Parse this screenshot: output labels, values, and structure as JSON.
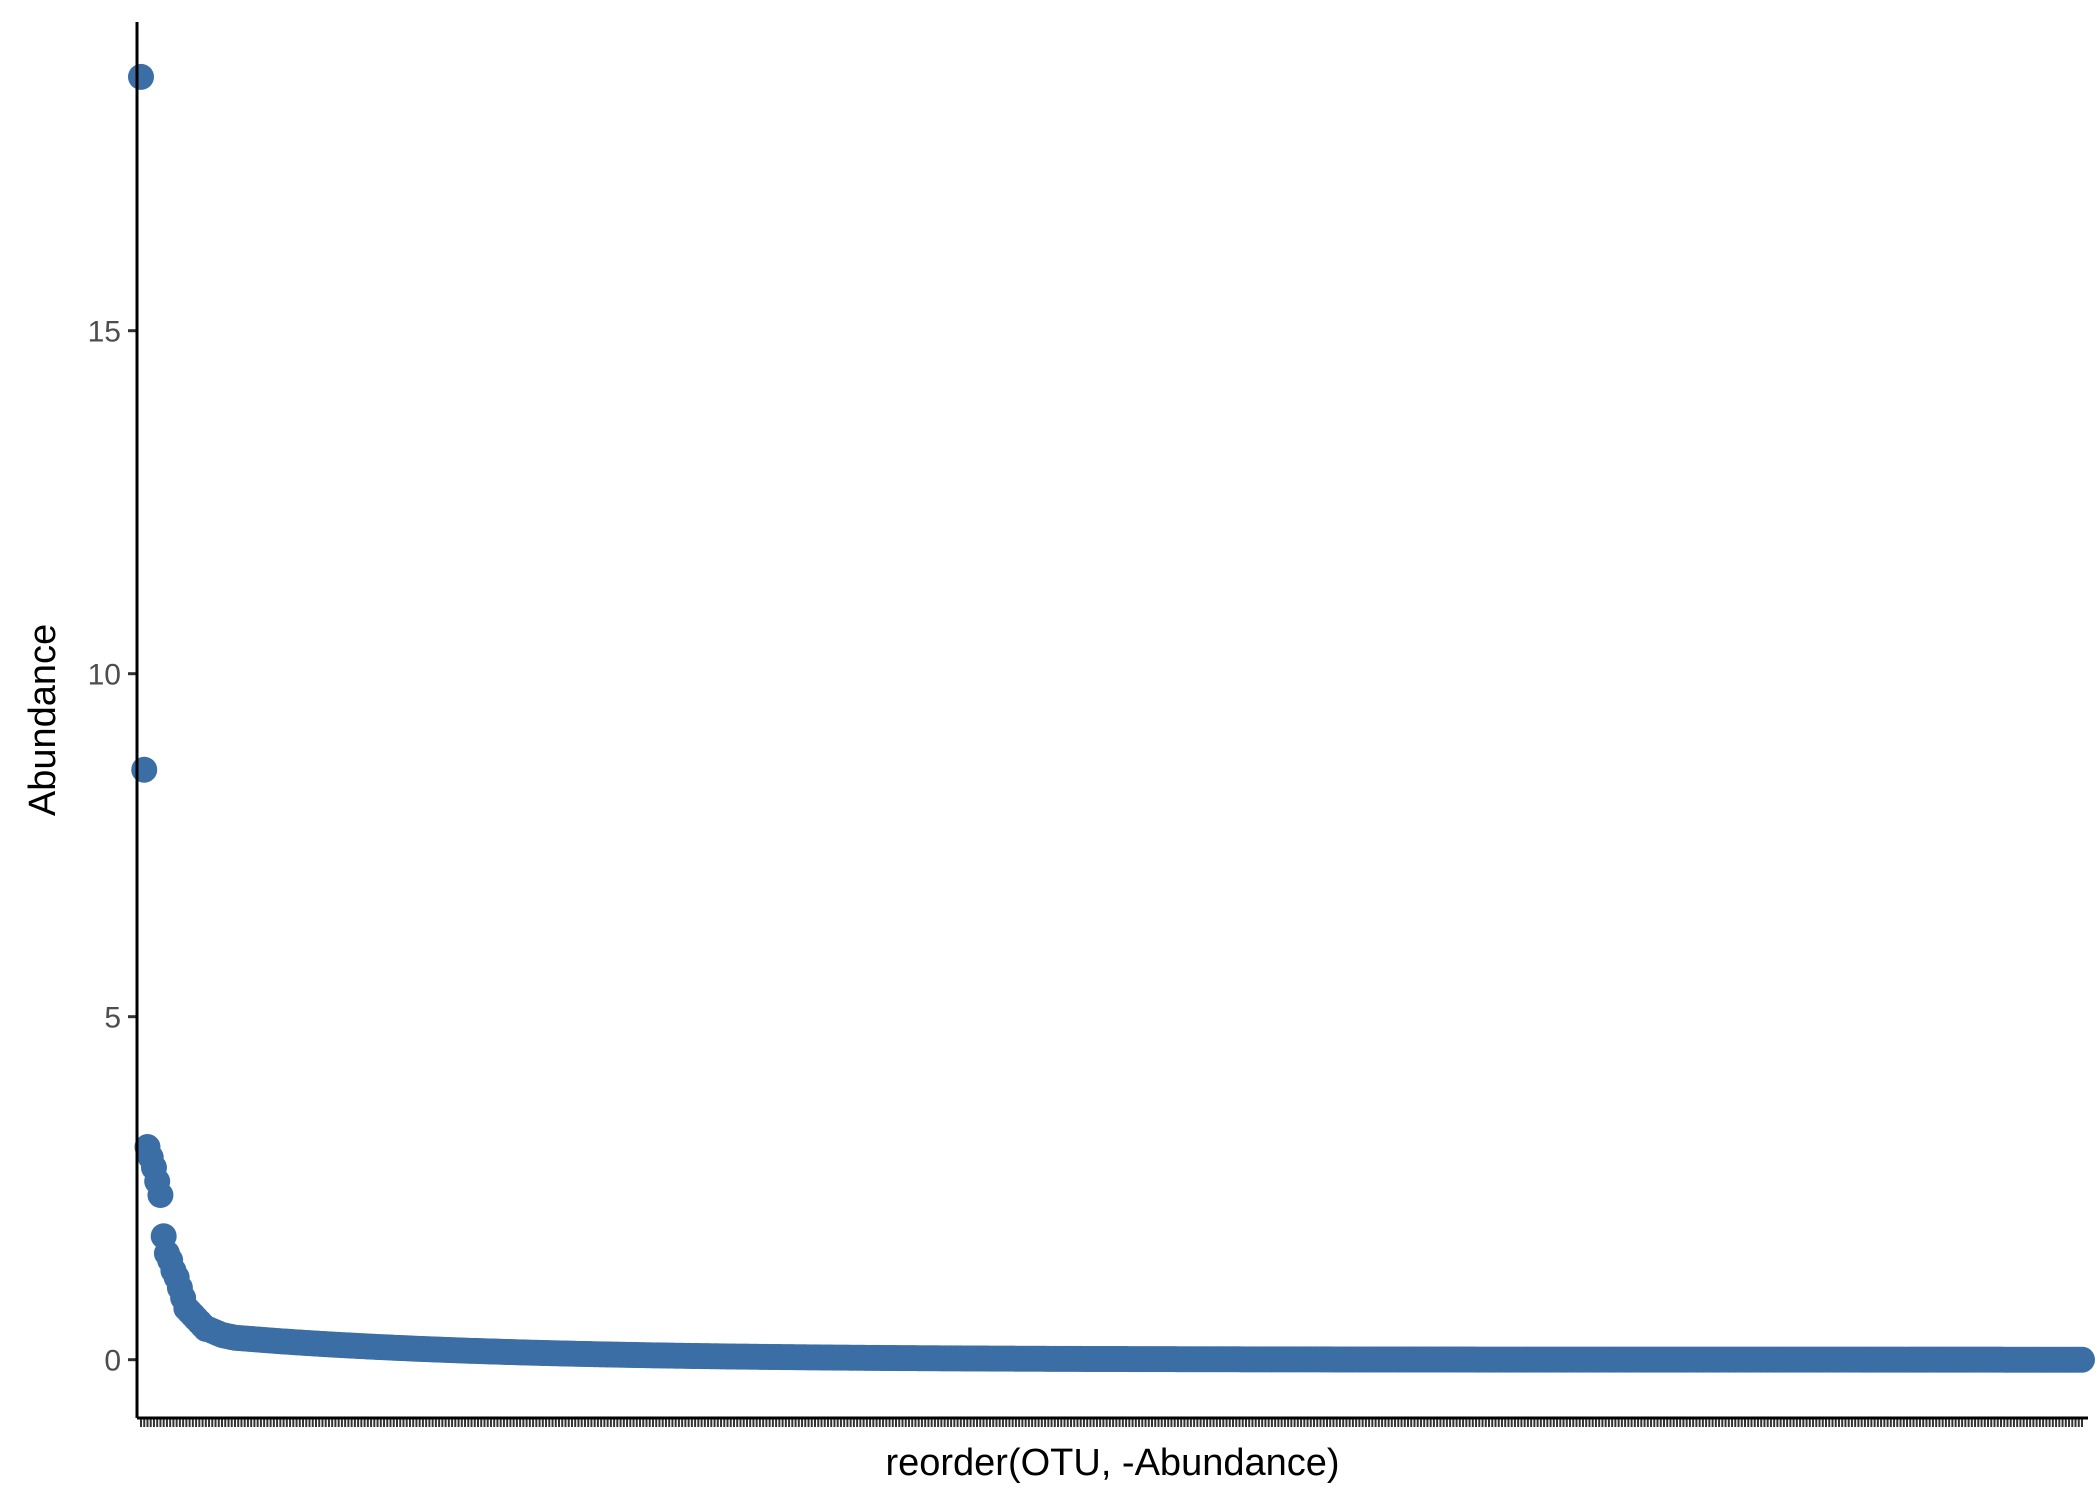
{
  "chart_data": {
    "type": "scatter",
    "title": "",
    "xlabel": "reorder(OTU, -Abundance)",
    "ylabel": "Abundance",
    "ylim": [
      -0.85,
      19.5
    ],
    "yticks": [
      0,
      5,
      10,
      15
    ],
    "ytick_labels": [
      "0",
      "5",
      "10",
      "15"
    ],
    "x_tick_labels_visible": false,
    "grid": false,
    "point_color": "#3A6EA5",
    "axis_color": "#000000",
    "n_points": 600,
    "top_values": [
      18.7,
      8.6,
      3.1,
      2.95,
      2.8,
      2.6,
      2.4,
      1.8,
      1.55,
      1.45,
      1.3,
      1.2,
      1.05,
      0.9,
      0.75,
      0.7,
      0.65,
      0.6,
      0.55,
      0.5,
      0.45,
      0.44,
      0.42,
      0.4,
      0.38,
      0.36,
      0.35,
      0.34,
      0.33,
      0.32
    ],
    "tail": {
      "start": 0.32,
      "end": 0.0,
      "decay": 6
    }
  }
}
